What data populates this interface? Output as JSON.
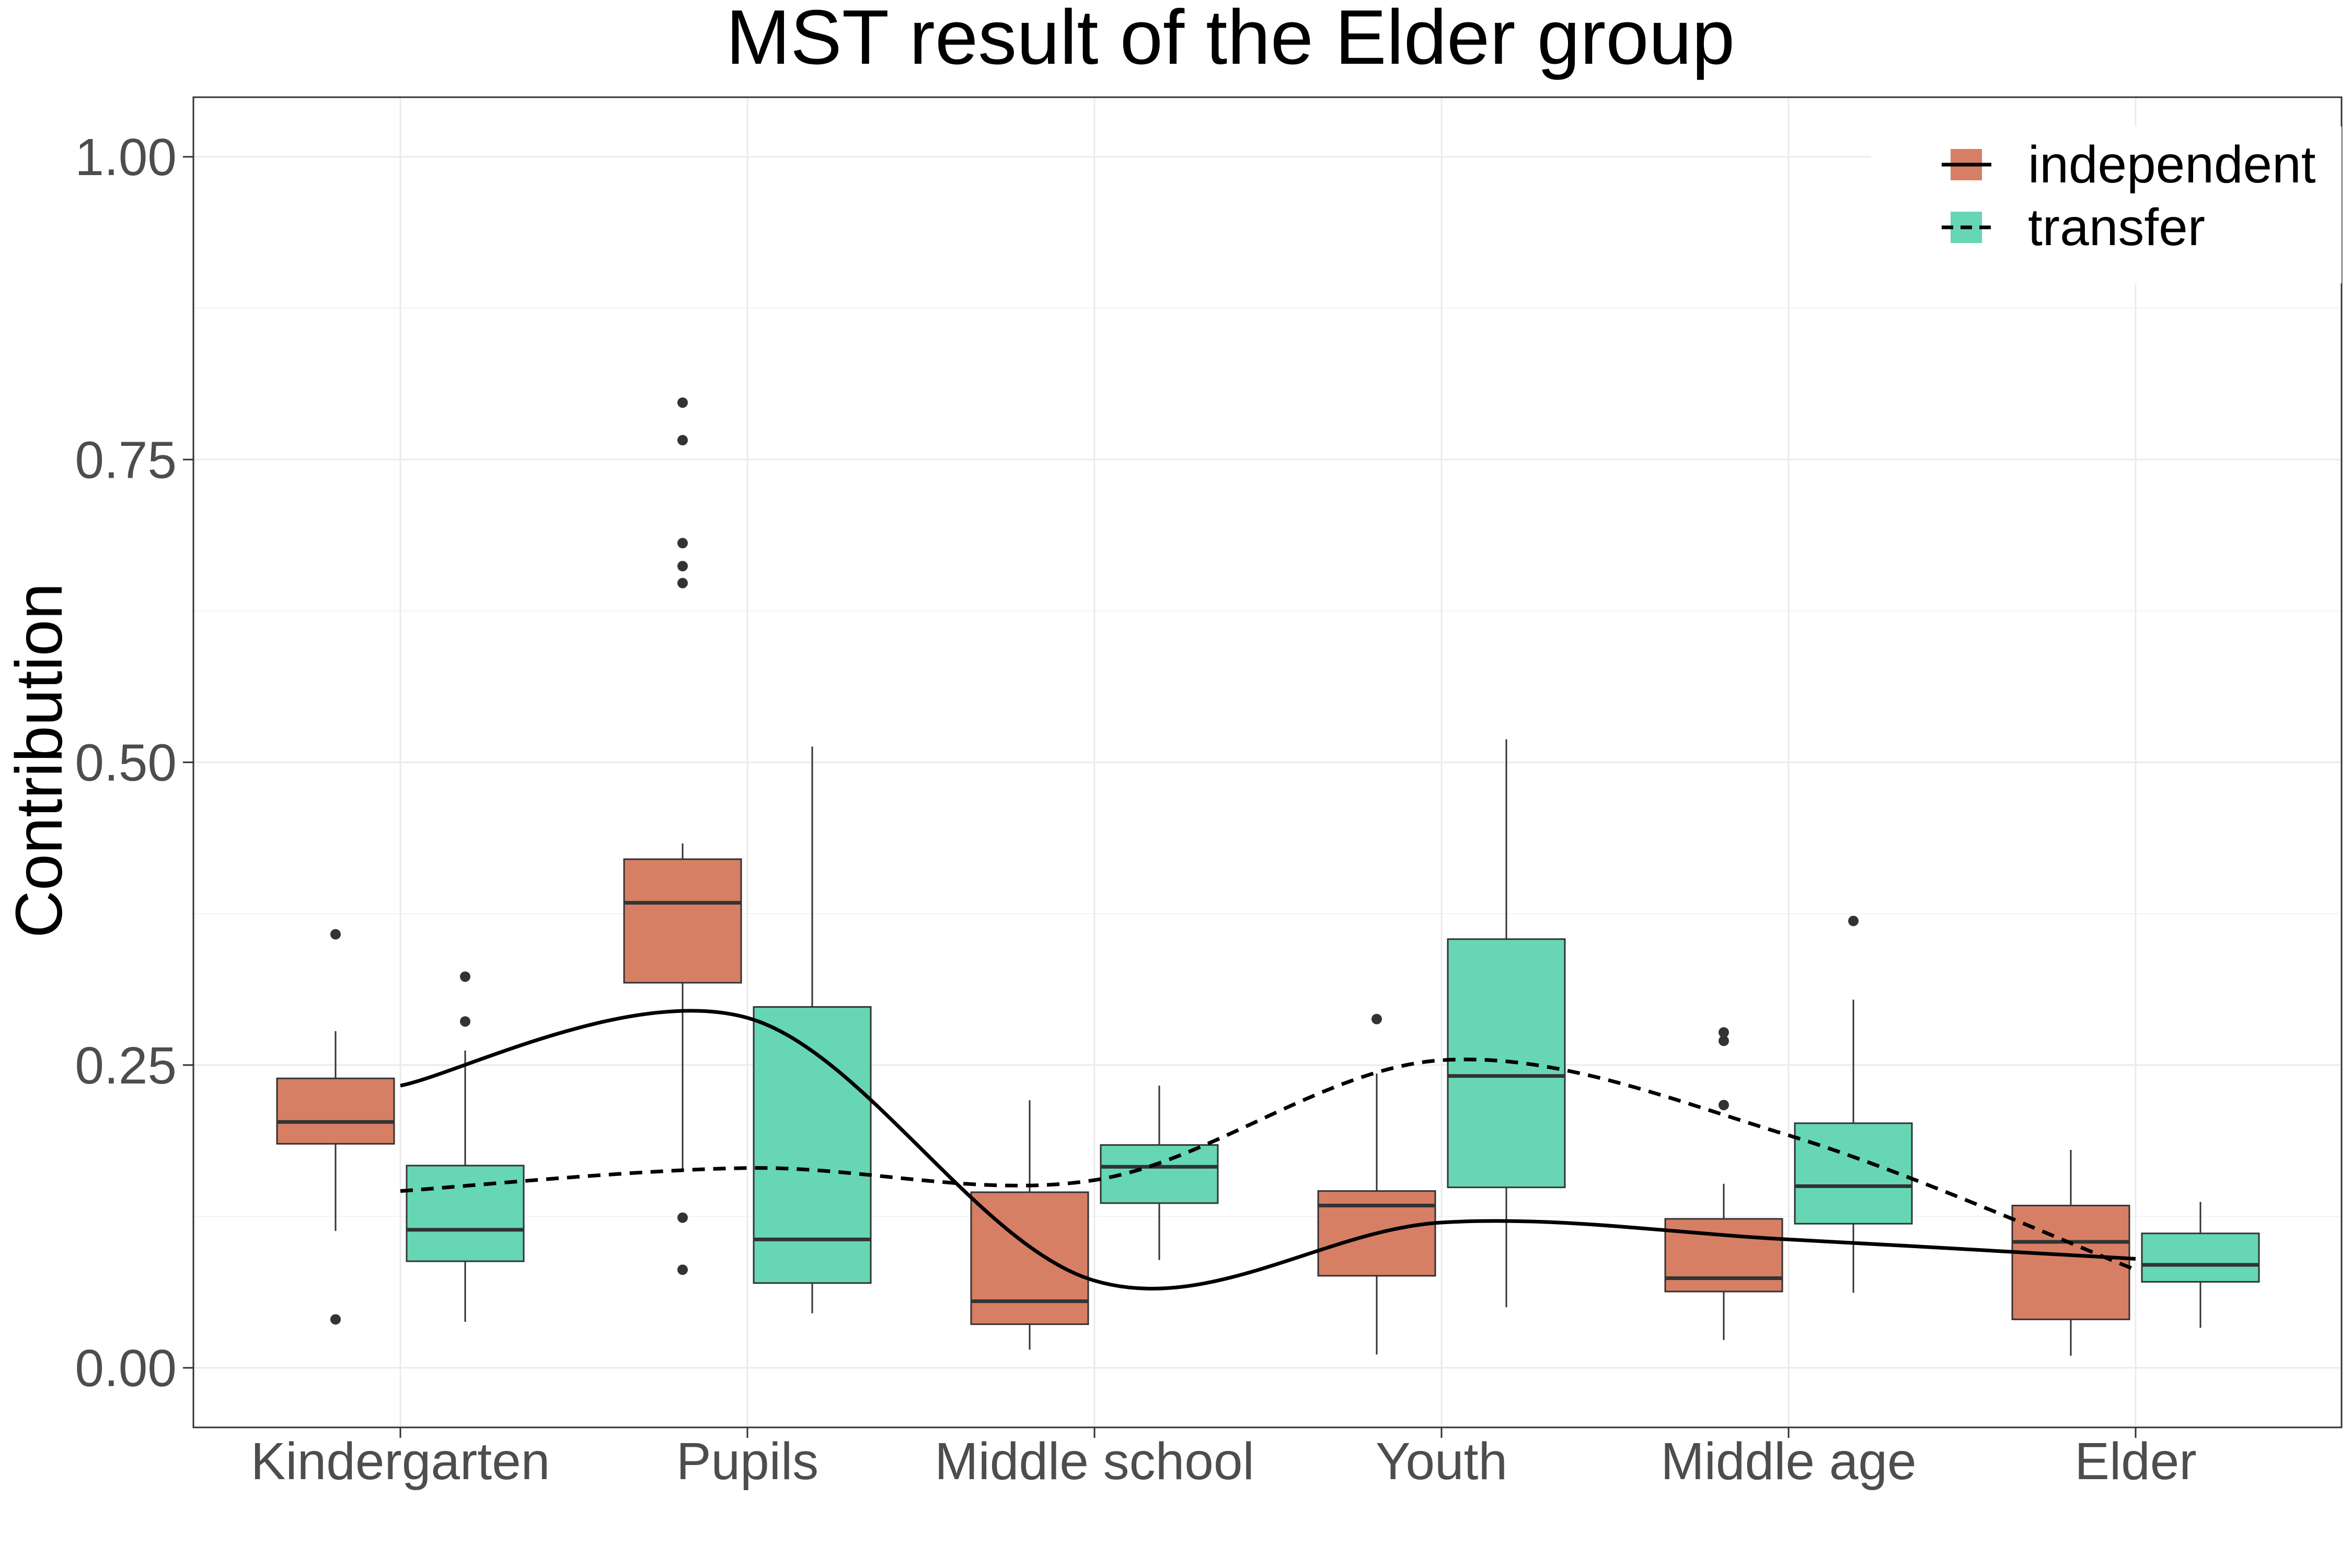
{
  "chart_data": {
    "type": "box",
    "title": "MST result of the Elder group",
    "xlabel": "",
    "ylabel": "Contribution",
    "ylim": [
      -0.05,
      1.05
    ],
    "yticks": [
      "0.00",
      "0.25",
      "0.50",
      "0.75",
      "1.00"
    ],
    "ytick_values": [
      0,
      0.25,
      0.5,
      0.75,
      1.0
    ],
    "categories": [
      "Kindergarten",
      "Pupils",
      "Middle school",
      "Youth",
      "Middle age",
      "Elder"
    ],
    "grid": true,
    "legend_position": "top-right",
    "series": [
      {
        "name": "independent",
        "color": "#d67f64",
        "line_style": "solid",
        "boxes": [
          {
            "category": "Kindergarten",
            "whisker_low": 0.113,
            "q1": 0.185,
            "median": 0.203,
            "q3": 0.239,
            "whisker_high": 0.278,
            "outliers": [
              0.358,
              0.04
            ]
          },
          {
            "category": "Pupils",
            "whisker_low": 0.162,
            "q1": 0.318,
            "median": 0.384,
            "q3": 0.42,
            "whisker_high": 0.433,
            "outliers": [
              0.797,
              0.766,
              0.681,
              0.662,
              0.648,
              0.124,
              0.081
            ]
          },
          {
            "category": "Middle school",
            "whisker_low": 0.015,
            "q1": 0.036,
            "median": 0.055,
            "q3": 0.145,
            "whisker_high": 0.221,
            "outliers": []
          },
          {
            "category": "Youth",
            "whisker_low": 0.011,
            "q1": 0.076,
            "median": 0.134,
            "q3": 0.146,
            "whisker_high": 0.243,
            "outliers": [
              0.288
            ]
          },
          {
            "category": "Middle age",
            "whisker_low": 0.023,
            "q1": 0.063,
            "median": 0.074,
            "q3": 0.123,
            "whisker_high": 0.152,
            "outliers": [
              0.277,
              0.27,
              0.217
            ]
          },
          {
            "category": "Elder",
            "whisker_low": 0.01,
            "q1": 0.04,
            "median": 0.104,
            "q3": 0.134,
            "whisker_high": 0.18,
            "outliers": []
          }
        ],
        "smooth": [
          0.233,
          0.289,
          0.072,
          0.12,
          0.106,
          0.09
        ]
      },
      {
        "name": "transfer",
        "color": "#66d6b4",
        "line_style": "dashed",
        "boxes": [
          {
            "category": "Kindergarten",
            "whisker_low": 0.038,
            "q1": 0.088,
            "median": 0.114,
            "q3": 0.167,
            "whisker_high": 0.262,
            "outliers": [
              0.323,
              0.286
            ]
          },
          {
            "category": "Pupils",
            "whisker_low": 0.045,
            "q1": 0.07,
            "median": 0.106,
            "q3": 0.298,
            "whisker_high": 0.513,
            "outliers": []
          },
          {
            "category": "Middle school",
            "whisker_low": 0.089,
            "q1": 0.136,
            "median": 0.166,
            "q3": 0.184,
            "whisker_high": 0.233,
            "outliers": []
          },
          {
            "category": "Youth",
            "whisker_low": 0.05,
            "q1": 0.149,
            "median": 0.241,
            "q3": 0.354,
            "whisker_high": 0.519,
            "outliers": []
          },
          {
            "category": "Middle age",
            "whisker_low": 0.062,
            "q1": 0.119,
            "median": 0.15,
            "q3": 0.202,
            "whisker_high": 0.304,
            "outliers": [
              0.369
            ]
          },
          {
            "category": "Elder",
            "whisker_low": 0.033,
            "q1": 0.071,
            "median": 0.085,
            "q3": 0.111,
            "whisker_high": 0.137,
            "outliers": []
          }
        ],
        "smooth": [
          0.146,
          0.165,
          0.155,
          0.254,
          0.192,
          0.081
        ]
      }
    ]
  }
}
